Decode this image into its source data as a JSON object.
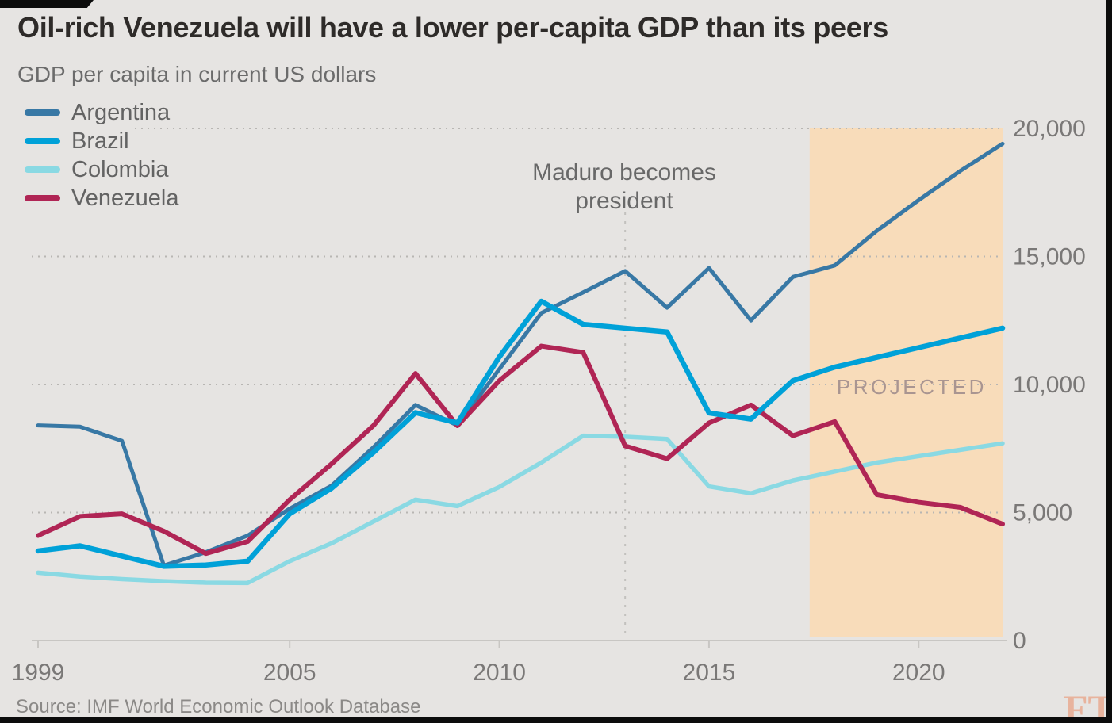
{
  "header": {
    "title": "Oil-rich Venezuela will have a lower per-capita GDP than its peers",
    "subtitle": "GDP per capita in current US dollars"
  },
  "legend": {
    "items": [
      {
        "label": "Argentina",
        "color": "#3878a5"
      },
      {
        "label": "Brazil",
        "color": "#00a1d8"
      },
      {
        "label": "Colombia",
        "color": "#8ad9e3"
      },
      {
        "label": "Venezuela",
        "color": "#b02555"
      }
    ]
  },
  "annotation": {
    "line1": "Maduro becomes",
    "line2": "president"
  },
  "footer": {
    "source": "Source: IMF World Economic Outlook Database",
    "watermark": "FT"
  },
  "chart_data": {
    "type": "line",
    "title": "Oil-rich Venezuela will have a lower per-capita GDP than its peers",
    "xlabel": "",
    "ylabel": "GDP per capita in current US dollars",
    "x": [
      1999,
      2000,
      2001,
      2002,
      2003,
      2004,
      2005,
      2006,
      2007,
      2008,
      2009,
      2010,
      2011,
      2012,
      2013,
      2014,
      2015,
      2016,
      2017,
      2018,
      2019,
      2020,
      2021,
      2022
    ],
    "series": [
      {
        "name": "Argentina",
        "color": "#3878a5",
        "values": [
          8400,
          8350,
          7800,
          2930,
          3450,
          4100,
          5150,
          6050,
          7550,
          9200,
          8400,
          10600,
          12790,
          13600,
          14430,
          13000,
          14550,
          12500,
          14200,
          14650,
          16000,
          17200,
          18350,
          19400
        ]
      },
      {
        "name": "Brazil",
        "color": "#00a1d8",
        "values": [
          3500,
          3700,
          3300,
          2900,
          2950,
          3100,
          4950,
          5950,
          7350,
          8900,
          8500,
          11080,
          13250,
          12350,
          12200,
          12050,
          8890,
          8650,
          10150,
          10680,
          11060,
          11440,
          11820,
          12200
        ]
      },
      {
        "name": "Colombia",
        "color": "#8ad9e3",
        "values": [
          2650,
          2500,
          2400,
          2320,
          2260,
          2250,
          3100,
          3800,
          4650,
          5500,
          5250,
          6000,
          6950,
          8000,
          7960,
          7870,
          6020,
          5750,
          6250,
          6600,
          6950,
          7200,
          7450,
          7700
        ]
      },
      {
        "name": "Venezuela",
        "color": "#b02555",
        "values": [
          4100,
          4850,
          4950,
          4270,
          3400,
          3870,
          5500,
          6900,
          8400,
          10430,
          8390,
          10150,
          11500,
          11250,
          7600,
          7100,
          8500,
          9200,
          8000,
          8550,
          5700,
          5400,
          5200,
          4550
        ]
      }
    ],
    "ylim": [
      0,
      20000
    ],
    "yticks": [
      0,
      5000,
      10000,
      15000,
      20000
    ],
    "ytick_labels": [
      "0",
      "5,000",
      "10,000",
      "15,000",
      "20,000"
    ],
    "xticks": [
      1999,
      2005,
      2010,
      2015,
      2020
    ],
    "grid": "dotted horizontal",
    "legend_position": "top-left",
    "projection_band": {
      "start_year": 2017.4,
      "end_year": 2022,
      "label": "PROJECTED",
      "color": "#f8dcba",
      "label_color": "#a99591"
    },
    "annotation": {
      "text": "Maduro becomes president",
      "year": 2013
    }
  },
  "colors": {
    "background": "#e6e4e2",
    "frame": "#0c0c0c",
    "grid": "#b8b6b3",
    "axis": "#c8c6c3",
    "annotation_line": "#c3c1be",
    "tick_label": "#7a7877"
  }
}
